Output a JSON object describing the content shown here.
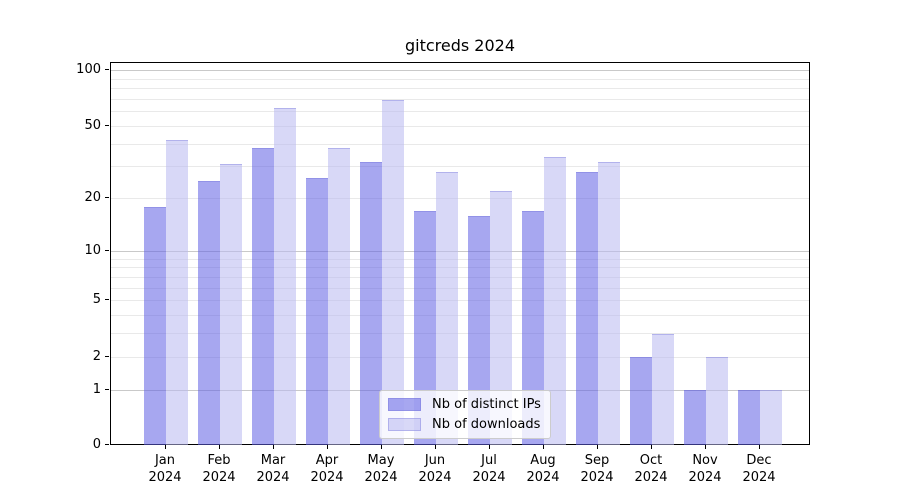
{
  "chart_data": {
    "type": "bar",
    "title": "gitcreds 2024",
    "categories": [
      "Jan",
      "Feb",
      "Mar",
      "Apr",
      "May",
      "Jun",
      "Jul",
      "Aug",
      "Sep",
      "Oct",
      "Nov",
      "Dec"
    ],
    "year_label": "2024",
    "series": [
      {
        "name": "Nb of distinct IPs",
        "color": "rgba(95,95,228,0.55)",
        "values": [
          18,
          25,
          38,
          26,
          32,
          17,
          16,
          17,
          28,
          2,
          1,
          1
        ]
      },
      {
        "name": "Nb of downloads",
        "color": "rgba(184,184,240,0.55)",
        "values": [
          42,
          31,
          63,
          38,
          70,
          28,
          22,
          34,
          32,
          3,
          2,
          1
        ]
      }
    ],
    "xlabel": "",
    "ylabel": "",
    "yscale": "log1p",
    "ylim": [
      0,
      110
    ],
    "ytick_labels": [
      "100",
      "50",
      "20",
      "10",
      "5",
      "2",
      "1",
      "0"
    ],
    "ytick_values": [
      100,
      50,
      20,
      10,
      5,
      2,
      1,
      0
    ],
    "grid": "on",
    "grid_major_values": [
      1,
      10,
      100
    ],
    "grid_minor_values": [
      2,
      3,
      4,
      5,
      6,
      7,
      8,
      9,
      20,
      30,
      40,
      50,
      60,
      70,
      80,
      90
    ],
    "legend_position": "lower center",
    "colors": {
      "grid_major": "#c9c9c9",
      "grid_minor": "#e9e9e9",
      "axis": "#000000",
      "bar_edge": "rgba(110,110,215,0.35)",
      "title_text": "#000000"
    }
  }
}
